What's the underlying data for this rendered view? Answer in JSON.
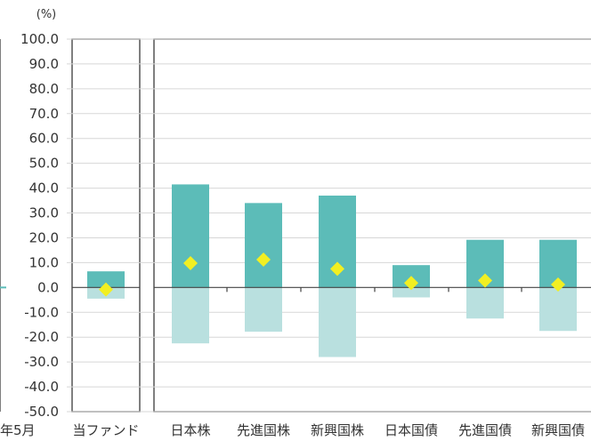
{
  "chart_data": {
    "type": "bar",
    "unit": "(%)",
    "ylim": [
      -50,
      100
    ],
    "yticks": [
      "100.0",
      "90.0",
      "80.0",
      "70.0",
      "60.0",
      "50.0",
      "40.0",
      "30.0",
      "20.0",
      "10.0",
      "0.0",
      "-10.0",
      "-20.0",
      "-30.0",
      "-40.0",
      "-50.0"
    ],
    "ytick_values": [
      100,
      90,
      80,
      70,
      60,
      50,
      40,
      30,
      20,
      10,
      0,
      -10,
      -20,
      -30,
      -40,
      -50
    ],
    "left_cutoff_label": "年5月",
    "categories": [
      "当ファンド",
      "日本株",
      "先進国株",
      "新興国株",
      "日本国債",
      "先進国債",
      "新興国債"
    ],
    "series": [
      {
        "role": "max",
        "values": [
          6.5,
          41.5,
          34,
          37,
          9,
          19.2,
          19.2
        ]
      },
      {
        "role": "min",
        "values": [
          -4.5,
          -22.5,
          -17.8,
          -28,
          -4,
          -12.5,
          -17.5
        ]
      },
      {
        "role": "average",
        "values": [
          -0.8,
          9.8,
          11.2,
          7.5,
          1.8,
          2.8,
          1.2
        ]
      }
    ],
    "colors": {
      "positive": "#5cbcb8",
      "negative": "#b9e0df",
      "marker": "#f2ef22",
      "frame": "#555555"
    }
  }
}
